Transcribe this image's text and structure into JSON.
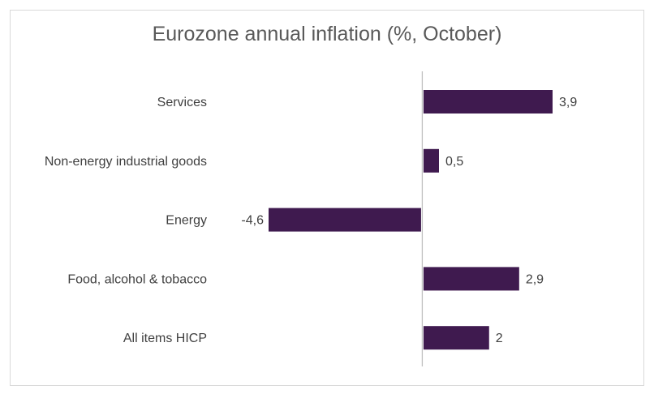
{
  "chart_data": {
    "type": "bar",
    "orientation": "horizontal",
    "title": "Eurozone annual inflation (%, October)",
    "categories": [
      "Services",
      "Non-energy industrial goods",
      "Energy",
      "Food, alcohol & tobacco",
      "All items HICP"
    ],
    "values": [
      3.9,
      0.5,
      -4.6,
      2.9,
      2
    ],
    "value_labels": [
      "3,9",
      "0,5",
      "-4,6",
      "2,9",
      "2"
    ],
    "xlim": [
      -4.6,
      3.9
    ],
    "xlabel": "",
    "ylabel": "",
    "grid": false,
    "legend": "none",
    "bar_color": "#3f1a4f",
    "axis_color": "#bfbfbf"
  }
}
